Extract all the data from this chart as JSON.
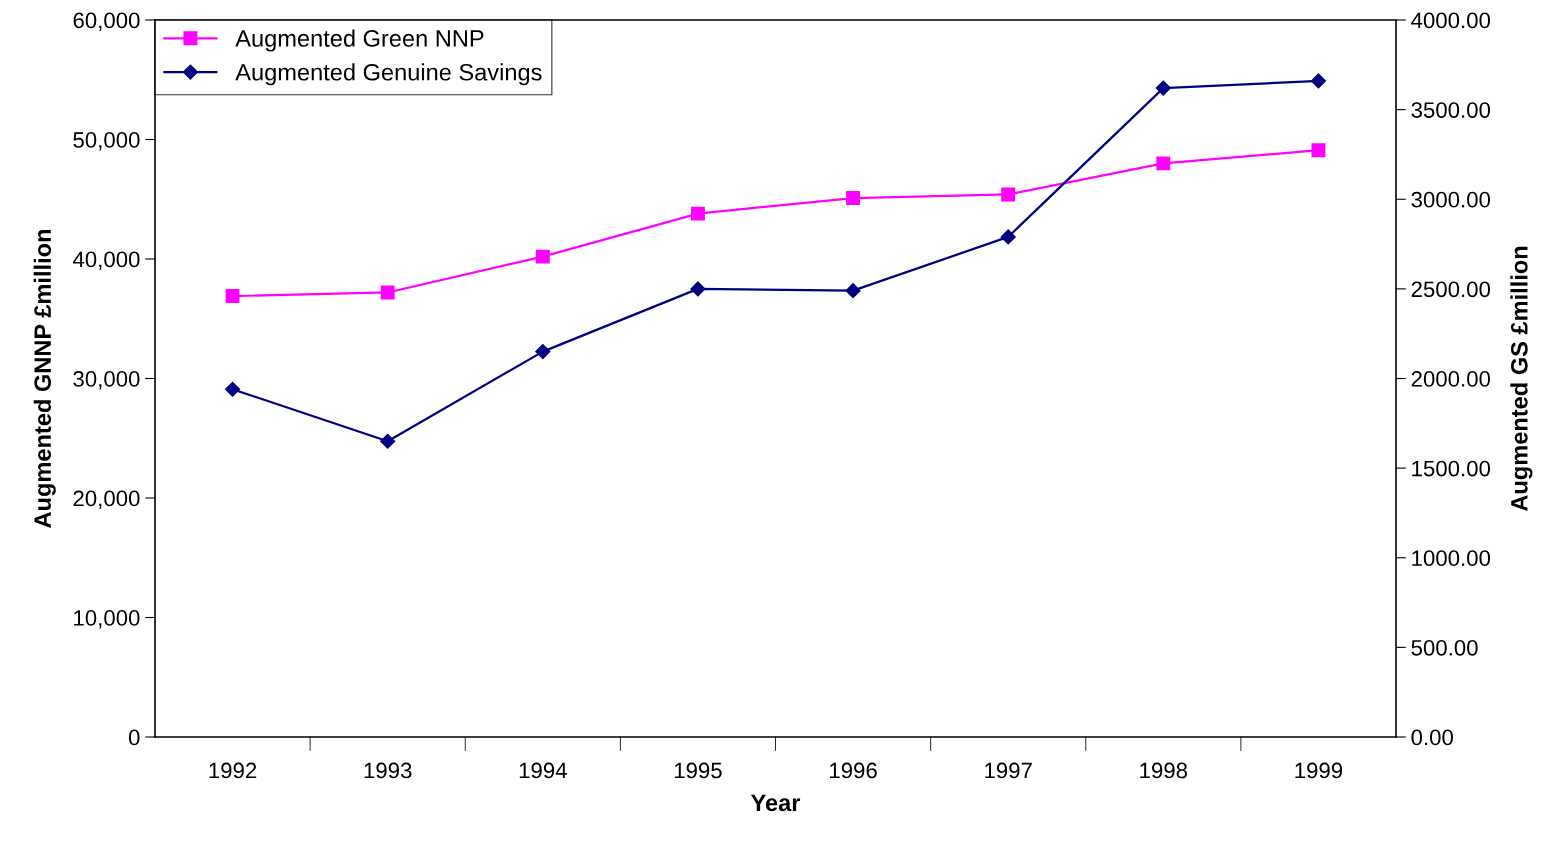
{
  "chart_data": {
    "type": "line",
    "xlabel": "Year",
    "ylabel": "Augmented GNNP £million",
    "y2label": "Augmented GS £million",
    "categories": [
      "1992",
      "1993",
      "1994",
      "1995",
      "1996",
      "1997",
      "1998",
      "1999"
    ],
    "series": [
      {
        "name": "Augmented Green NNP",
        "color": "#ff00ff",
        "marker": "square",
        "values": [
          36900,
          37200,
          40200,
          43800,
          45100,
          45400,
          48000,
          49100
        ]
      },
      {
        "name": "Augmented Genuine Savings",
        "color": "#000080",
        "marker": "diamond",
        "axis": "y2",
        "values": [
          1940,
          1650,
          2150,
          2500,
          2490,
          2790,
          3620,
          3660
        ]
      }
    ],
    "ylim": [
      0,
      60000
    ],
    "yticks": [
      0,
      {
        "value": 10000,
        "label": "10,000"
      },
      {
        "value": 20000,
        "label": "20,000"
      },
      {
        "value": 30000,
        "label": "30,000"
      },
      {
        "value": 40000,
        "label": "40,000"
      },
      {
        "value": 50000,
        "label": "50,000"
      },
      {
        "value": 60000,
        "label": "60,000"
      }
    ],
    "y2lim": [
      0,
      4000
    ],
    "y2ticks": [
      {
        "value": 0,
        "label": "0.00"
      },
      {
        "value": 500,
        "label": "500.00"
      },
      {
        "value": 1000,
        "label": "1000.00"
      },
      {
        "value": 1500,
        "label": "1500.00"
      },
      {
        "value": 2000,
        "label": "2000.00"
      },
      {
        "value": 2500,
        "label": "2500.00"
      },
      {
        "value": 3000,
        "label": "3000.00"
      },
      {
        "value": 3500,
        "label": "3500.00"
      },
      {
        "value": 4000,
        "label": "4000.00"
      }
    ],
    "legend": "top left",
    "grid": false
  }
}
